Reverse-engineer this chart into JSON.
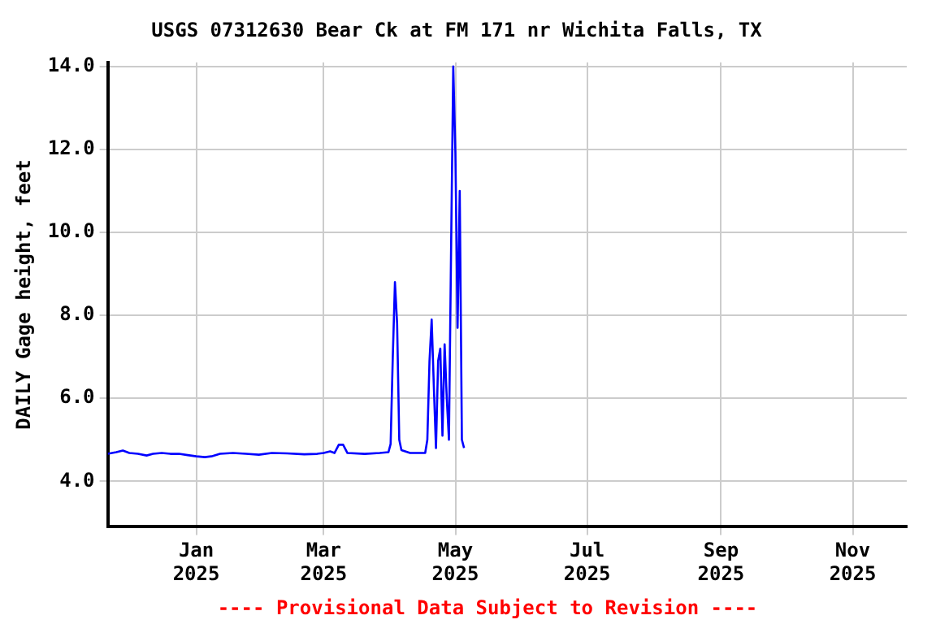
{
  "chart_data": {
    "type": "line",
    "title": "USGS 07312630 Bear Ck at FM 171 nr Wichita Falls, TX",
    "ylabel": "DAILY Gage height, feet",
    "annotations": [
      "---- Provisional Data Subject to Revision ----"
    ],
    "x": [
      "2024-11-21",
      "2024-11-25",
      "2024-11-28",
      "2024-12-01",
      "2024-12-05",
      "2024-12-09",
      "2024-12-12",
      "2024-12-16",
      "2024-12-20",
      "2024-12-24",
      "2024-12-28",
      "2025-01-01",
      "2025-01-05",
      "2025-01-08",
      "2025-01-12",
      "2025-01-18",
      "2025-01-24",
      "2025-01-30",
      "2025-02-05",
      "2025-02-12",
      "2025-02-20",
      "2025-02-26",
      "2025-03-01",
      "2025-03-04",
      "2025-03-06",
      "2025-03-08",
      "2025-03-10",
      "2025-03-12",
      "2025-03-20",
      "2025-03-27",
      "2025-03-31",
      "2025-04-01",
      "2025-04-02",
      "2025-04-03",
      "2025-04-04",
      "2025-04-05",
      "2025-04-06",
      "2025-04-10",
      "2025-04-17",
      "2025-04-18",
      "2025-04-19",
      "2025-04-20",
      "2025-04-21",
      "2025-04-22",
      "2025-04-23",
      "2025-04-24",
      "2025-04-25",
      "2025-04-26",
      "2025-04-27",
      "2025-04-28",
      "2025-04-29",
      "2025-04-30",
      "2025-05-01",
      "2025-05-02",
      "2025-05-03",
      "2025-05-04",
      "2025-05-05"
    ],
    "series": [
      {
        "color": "#0000ff",
        "values": [
          4.66,
          4.7,
          4.74,
          4.68,
          4.66,
          4.62,
          4.66,
          4.68,
          4.66,
          4.66,
          4.63,
          4.6,
          4.58,
          4.6,
          4.66,
          4.68,
          4.66,
          4.64,
          4.68,
          4.67,
          4.65,
          4.66,
          4.68,
          4.72,
          4.68,
          4.88,
          4.88,
          4.68,
          4.66,
          4.68,
          4.7,
          4.9,
          7.0,
          8.8,
          7.8,
          5.0,
          4.75,
          4.68,
          4.68,
          5.0,
          6.9,
          7.9,
          6.3,
          4.8,
          6.9,
          7.2,
          5.1,
          7.3,
          6.0,
          5.0,
          9.6,
          14.0,
          11.9,
          7.7,
          11.0,
          5.0,
          4.8
        ]
      }
    ],
    "xlim": [
      "2024-11-21",
      "2025-11-26"
    ],
    "xticks": [
      {
        "value": "2025-01-01",
        "label": "Jan 2025"
      },
      {
        "value": "2025-03-01",
        "label": "Mar 2025"
      },
      {
        "value": "2025-05-01",
        "label": "May 2025"
      },
      {
        "value": "2025-07-01",
        "label": "Jul 2025"
      },
      {
        "value": "2025-09-01",
        "label": "Sep 2025"
      },
      {
        "value": "2025-11-01",
        "label": "Nov 2025"
      }
    ],
    "ylim": [
      2.9,
      14.1
    ],
    "yticks": [
      {
        "value": 4,
        "label": "4.0"
      },
      {
        "value": 6,
        "label": "6.0"
      },
      {
        "value": 8,
        "label": "8.0"
      },
      {
        "value": 10,
        "label": "10.0"
      },
      {
        "value": 12,
        "label": "12.0"
      },
      {
        "value": 14,
        "label": "14.0"
      }
    ],
    "grid": true,
    "legend": false,
    "marker": "none",
    "line_style": "solid"
  }
}
